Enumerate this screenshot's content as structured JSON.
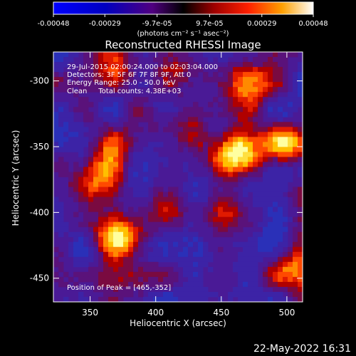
{
  "colorbar": {
    "tick_labels": [
      "-0.00048",
      "-0.00029",
      "-9.7e-05",
      "9.7e-05",
      "0.00029",
      "0.00048"
    ],
    "tick_values": [
      -0.00048,
      -0.00029,
      -9.7e-05,
      9.7e-05,
      0.00029,
      0.00048
    ],
    "units_label": "(photons cm⁻² s⁻¹ asec⁻²)"
  },
  "chart_data": {
    "type": "heatmap",
    "title": "Reconstructed RHESSI Image",
    "xlabel": "Heliocentric X (arcsec)",
    "ylabel": "Heliocentric Y (arcsec)",
    "xlim": [
      322,
      512
    ],
    "ylim": [
      -468,
      -278
    ],
    "x_ticks": [
      350,
      400,
      450,
      500
    ],
    "y_ticks": [
      -300,
      -350,
      -400,
      -450
    ],
    "value_range": [
      -0.00048,
      0.00048
    ],
    "peak_position": [
      465,
      -352
    ],
    "bright_regions": [
      {
        "x": 372,
        "y": -420,
        "level": 0.95
      },
      {
        "x": 462,
        "y": -352,
        "level": 1.0
      },
      {
        "x": 500,
        "y": -350,
        "level": 0.8
      },
      {
        "x": 355,
        "y": -375,
        "level": 0.55
      },
      {
        "x": 368,
        "y": -348,
        "level": 0.55
      },
      {
        "x": 408,
        "y": -398,
        "level": 0.45
      },
      {
        "x": 470,
        "y": -302,
        "level": 0.6
      },
      {
        "x": 455,
        "y": -395,
        "level": 0.35
      },
      {
        "x": 505,
        "y": -440,
        "level": 0.45
      },
      {
        "x": 372,
        "y": -290,
        "level": 0.35
      },
      {
        "x": 425,
        "y": -292,
        "level": 0.3
      },
      {
        "x": 410,
        "y": -333,
        "level": 0.35
      }
    ],
    "annotations": [
      "29-Jul-2015 02:00:24.000 to 02:03:04.000",
      "Detectors: 3F 5F 6F 7F 8F 9F, Att 0",
      "Energy Range: 25.0 - 50.0 keV",
      "Clean     Total counts: 4.38E+03",
      "Position of Peak = [465,-352]"
    ]
  },
  "timestamp": "22-May-2022 16:31"
}
